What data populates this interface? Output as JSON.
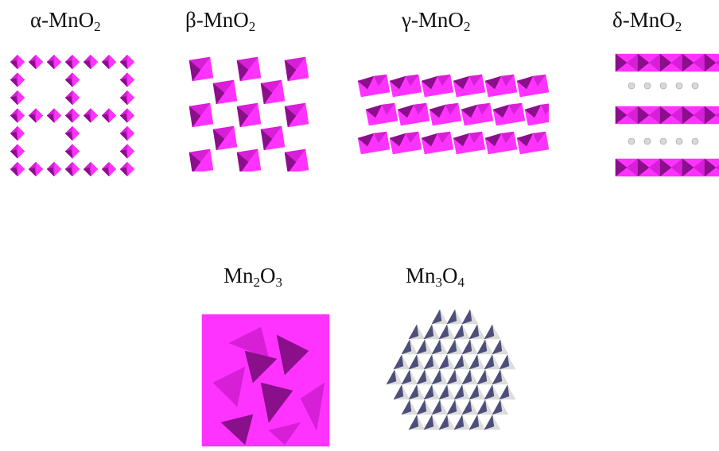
{
  "structures": [
    {
      "id": "alpha",
      "prefix": "α-MnO",
      "sub1": "2",
      "mid": "",
      "sub2": ""
    },
    {
      "id": "beta",
      "prefix": "β-MnO",
      "sub1": "2",
      "mid": "",
      "sub2": ""
    },
    {
      "id": "gamma",
      "prefix": "γ-MnO",
      "sub1": "2",
      "mid": "",
      "sub2": ""
    },
    {
      "id": "delta",
      "prefix": "δ-MnO",
      "sub1": "2",
      "mid": "",
      "sub2": ""
    },
    {
      "id": "mn2o3",
      "prefix": "Mn",
      "sub1": "2",
      "mid": "O",
      "sub2": "3"
    },
    {
      "id": "mn3o4",
      "prefix": "Mn",
      "sub1": "3",
      "mid": "O",
      "sub2": "4"
    }
  ],
  "colors": {
    "polyhedron_light": "#ff33ff",
    "polyhedron_mid": "#d81fd8",
    "polyhedron_dark": "#8a0f8a",
    "ion": "#d8d8d8",
    "mn3o4_light": "#dcdcdc",
    "mn3o4_dark": "#4d4f7a"
  }
}
